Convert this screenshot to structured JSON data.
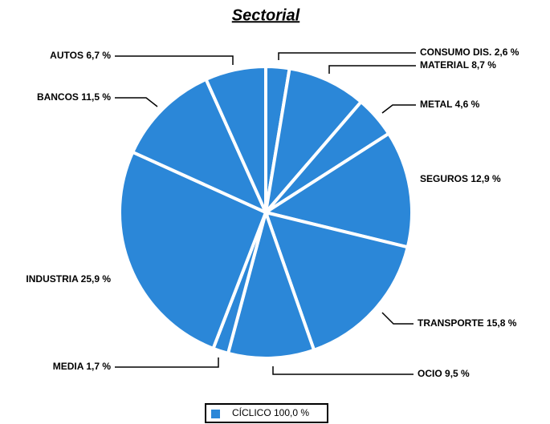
{
  "chart_data": {
    "type": "pie",
    "title": "Sectorial",
    "categories": [
      "CONSUMO DIS.",
      "MATERIAL",
      "METAL",
      "SEGUROS",
      "TRANSPORTE",
      "OCIO",
      "MEDIA",
      "INDUSTRIA",
      "BANCOS",
      "AUTOS"
    ],
    "series": [
      {
        "name": "CÍCLICO 100,0 %",
        "color": "#2b87d8",
        "values": [
          2.6,
          8.7,
          4.6,
          12.9,
          15.8,
          9.5,
          1.7,
          25.9,
          11.5,
          6.7
        ],
        "value_labels": [
          "2,6 %",
          "8,7 %",
          "4,6 %",
          "12,9 %",
          "15,8 %",
          "9,5 %",
          "1,7 %",
          "25,9 %",
          "11,5 %",
          "6,7 %"
        ]
      }
    ]
  }
}
